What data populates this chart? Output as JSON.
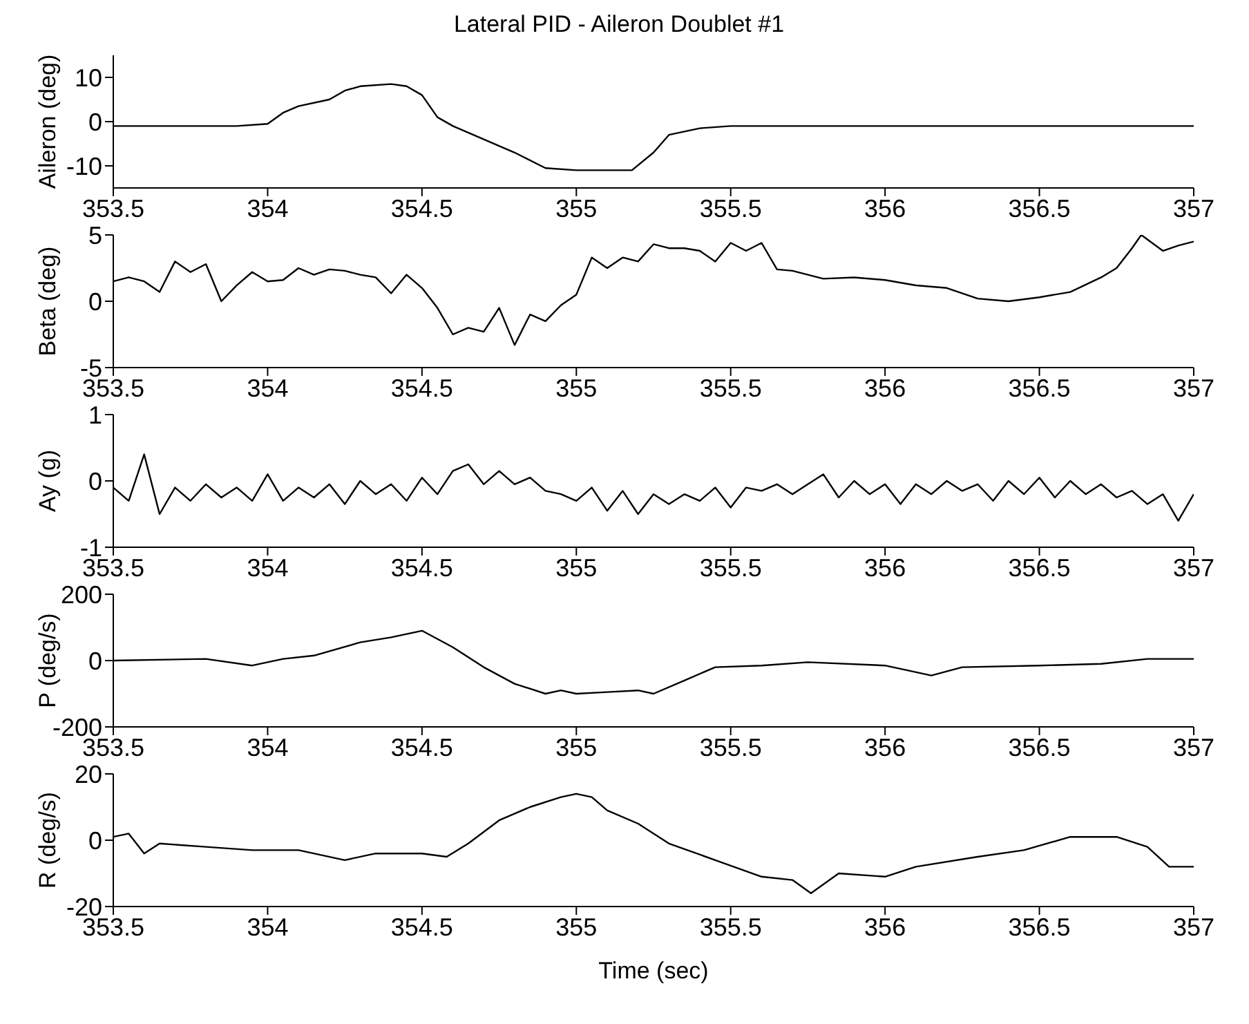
{
  "chart_data": [
    {
      "type": "line",
      "title": "Lateral PID - Aileron Doublet #1",
      "ylabel": "Aileron (deg)",
      "color": "#000000",
      "xlim": [
        353.5,
        357
      ],
      "xticks": [
        353.5,
        354,
        354.5,
        355,
        355.5,
        356,
        356.5,
        357
      ],
      "ylim": [
        -15,
        15
      ],
      "yticks": [
        -10,
        0,
        10
      ],
      "x": [
        353.5,
        353.7,
        353.9,
        354.0,
        354.05,
        354.1,
        354.2,
        354.25,
        354.3,
        354.4,
        354.45,
        354.5,
        354.55,
        354.6,
        354.7,
        354.8,
        354.9,
        355.0,
        355.1,
        355.18,
        355.25,
        355.3,
        355.4,
        355.5,
        355.75,
        356.0,
        356.5,
        357.0
      ],
      "values": [
        -1,
        -1,
        -1,
        -0.5,
        2,
        3.5,
        5,
        7,
        8,
        8.5,
        8,
        6,
        1,
        -1,
        -4,
        -7,
        -10.5,
        -11,
        -11,
        -11,
        -7,
        -3,
        -1.5,
        -1,
        -1,
        -1,
        -1,
        -1
      ]
    },
    {
      "type": "line",
      "ylabel": "Beta (deg)",
      "color": "#000000",
      "xlim": [
        353.5,
        357
      ],
      "xticks": [
        353.5,
        354,
        354.5,
        355,
        355.5,
        356,
        356.5,
        357
      ],
      "ylim": [
        -5,
        5
      ],
      "yticks": [
        -5,
        0,
        5
      ],
      "x": [
        353.5,
        353.55,
        353.6,
        353.65,
        353.7,
        353.75,
        353.8,
        353.85,
        353.9,
        353.95,
        354.0,
        354.05,
        354.1,
        354.15,
        354.2,
        354.25,
        354.3,
        354.35,
        354.4,
        354.45,
        354.5,
        354.55,
        354.6,
        354.65,
        354.7,
        354.75,
        354.8,
        354.85,
        354.9,
        354.95,
        355.0,
        355.05,
        355.1,
        355.15,
        355.2,
        355.25,
        355.3,
        355.35,
        355.4,
        355.45,
        355.5,
        355.55,
        355.6,
        355.65,
        355.7,
        355.8,
        355.9,
        356.0,
        356.1,
        356.2,
        356.3,
        356.4,
        356.5,
        356.6,
        356.7,
        356.75,
        356.8,
        356.83,
        356.9,
        356.95,
        357.0
      ],
      "values": [
        1.5,
        1.8,
        1.5,
        0.7,
        3.0,
        2.2,
        2.8,
        0,
        1.2,
        2.2,
        1.5,
        1.6,
        2.5,
        2.0,
        2.4,
        2.3,
        2.0,
        1.8,
        0.6,
        2.0,
        1.0,
        -0.5,
        -2.5,
        -2.0,
        -2.3,
        -0.5,
        -3.3,
        -1.0,
        -1.5,
        -0.3,
        0.5,
        3.3,
        2.5,
        3.3,
        3.0,
        4.3,
        4.0,
        4.0,
        3.8,
        3.0,
        4.4,
        3.8,
        4.4,
        2.4,
        2.3,
        1.7,
        1.8,
        1.6,
        1.2,
        1.0,
        0.2,
        0.0,
        0.3,
        0.7,
        1.8,
        2.5,
        4.0,
        5.0,
        3.8,
        4.2,
        4.5
      ]
    },
    {
      "type": "line",
      "ylabel": "Ay (g)",
      "color": "#000000",
      "xlim": [
        353.5,
        357
      ],
      "xticks": [
        353.5,
        354,
        354.5,
        355,
        355.5,
        356,
        356.5,
        357
      ],
      "ylim": [
        -1,
        1
      ],
      "yticks": [
        -1,
        0,
        1
      ],
      "x": [
        353.5,
        353.55,
        353.6,
        353.65,
        353.7,
        353.75,
        353.8,
        353.85,
        353.9,
        353.95,
        354.0,
        354.05,
        354.1,
        354.15,
        354.2,
        354.25,
        354.3,
        354.35,
        354.4,
        354.45,
        354.5,
        354.55,
        354.6,
        354.65,
        354.7,
        354.75,
        354.8,
        354.85,
        354.9,
        354.95,
        355.0,
        355.05,
        355.1,
        355.15,
        355.2,
        355.25,
        355.3,
        355.35,
        355.4,
        355.45,
        355.5,
        355.55,
        355.6,
        355.65,
        355.7,
        355.75,
        355.8,
        355.85,
        355.9,
        355.95,
        356.0,
        356.05,
        356.1,
        356.15,
        356.2,
        356.25,
        356.3,
        356.35,
        356.4,
        356.45,
        356.5,
        356.55,
        356.6,
        356.65,
        356.7,
        356.75,
        356.8,
        356.85,
        356.9,
        356.95,
        357.0
      ],
      "values": [
        -0.1,
        -0.3,
        0.4,
        -0.5,
        -0.1,
        -0.3,
        -0.05,
        -0.25,
        -0.1,
        -0.3,
        0.1,
        -0.3,
        -0.1,
        -0.25,
        -0.05,
        -0.35,
        0.0,
        -0.2,
        -0.05,
        -0.3,
        0.05,
        -0.2,
        0.15,
        0.25,
        -0.05,
        0.15,
        -0.05,
        0.05,
        -0.15,
        -0.2,
        -0.3,
        -0.1,
        -0.45,
        -0.15,
        -0.5,
        -0.2,
        -0.35,
        -0.2,
        -0.3,
        -0.1,
        -0.4,
        -0.1,
        -0.15,
        -0.05,
        -0.2,
        -0.05,
        0.1,
        -0.25,
        0.0,
        -0.2,
        -0.05,
        -0.35,
        -0.05,
        -0.2,
        0.0,
        -0.15,
        -0.05,
        -0.3,
        0.0,
        -0.2,
        0.05,
        -0.25,
        0.0,
        -0.2,
        -0.05,
        -0.25,
        -0.15,
        -0.35,
        -0.2,
        -0.6,
        -0.2
      ]
    },
    {
      "type": "line",
      "ylabel": "P (deg/s)",
      "color": "#000000",
      "xlim": [
        353.5,
        357
      ],
      "xticks": [
        353.5,
        354,
        354.5,
        355,
        355.5,
        356,
        356.5,
        357
      ],
      "ylim": [
        -200,
        200
      ],
      "yticks": [
        -200,
        0,
        200
      ],
      "x": [
        353.5,
        353.8,
        353.95,
        354.05,
        354.15,
        354.3,
        354.4,
        354.5,
        354.6,
        354.7,
        354.8,
        354.9,
        354.95,
        355.0,
        355.1,
        355.2,
        355.25,
        355.35,
        355.45,
        355.6,
        355.75,
        356.0,
        356.15,
        356.25,
        356.5,
        356.7,
        356.85,
        357.0
      ],
      "values": [
        0,
        5,
        -15,
        5,
        15,
        55,
        70,
        90,
        40,
        -20,
        -70,
        -100,
        -90,
        -100,
        -95,
        -90,
        -100,
        -60,
        -20,
        -15,
        -5,
        -15,
        -45,
        -20,
        -15,
        -10,
        5,
        5
      ]
    },
    {
      "type": "line",
      "ylabel": "R (deg/s)",
      "xlabel": "Time (sec)",
      "color": "#000000",
      "xlim": [
        353.5,
        357
      ],
      "xticks": [
        353.5,
        354,
        354.5,
        355,
        355.5,
        356,
        356.5,
        357
      ],
      "ylim": [
        -20,
        20
      ],
      "yticks": [
        -20,
        0,
        20
      ],
      "x": [
        353.5,
        353.55,
        353.6,
        353.65,
        353.8,
        353.95,
        354.1,
        354.25,
        354.35,
        354.5,
        354.58,
        354.65,
        354.75,
        354.85,
        354.95,
        355.0,
        355.05,
        355.1,
        355.2,
        355.3,
        355.45,
        355.6,
        355.7,
        355.76,
        355.85,
        356.0,
        356.1,
        356.3,
        356.45,
        356.6,
        356.75,
        356.85,
        356.92,
        357.0
      ],
      "values": [
        1,
        2,
        -4,
        -1,
        -2,
        -3,
        -3,
        -6,
        -4,
        -4,
        -5,
        -1,
        6,
        10,
        13,
        14,
        13,
        9,
        5,
        -1,
        -6,
        -11,
        -12,
        -16,
        -10,
        -11,
        -8,
        -5,
        -3,
        1,
        1,
        -2,
        -8,
        -8
      ]
    }
  ]
}
